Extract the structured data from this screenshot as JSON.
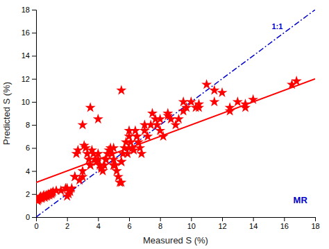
{
  "chart_data": {
    "type": "scatter",
    "xlabel": "Measured S (%)",
    "ylabel": "Predicted S (%)",
    "xlim": [
      0,
      18
    ],
    "ylim": [
      0,
      18
    ],
    "xticks": [
      0,
      2,
      4,
      6,
      8,
      10,
      12,
      14,
      16,
      18
    ],
    "yticks": [
      0,
      2,
      4,
      6,
      8,
      10,
      12,
      14,
      16,
      18
    ],
    "series": [
      {
        "type": "scatter",
        "marker": "star",
        "color": "#ff0000",
        "x": [
          0.1,
          0.15,
          0.2,
          0.25,
          0.3,
          0.35,
          0.4,
          0.45,
          0.5,
          0.55,
          0.6,
          0.65,
          0.7,
          0.75,
          0.8,
          0.85,
          0.9,
          0.95,
          1.0,
          1.05,
          1.1,
          1.3,
          1.6,
          1.9,
          2.0,
          2.1,
          2.2,
          2.3,
          2.5,
          2.6,
          2.7,
          2.8,
          3.0,
          3.1,
          3.2,
          3.3,
          3.4,
          3.5,
          3.6,
          3.7,
          3.8,
          3.9,
          4.0,
          4.1,
          4.2,
          4.3,
          4.4,
          4.5,
          4.6,
          4.7,
          4.8,
          4.9,
          5.0,
          5.0,
          5.1,
          5.2,
          5.3,
          5.4,
          5.5,
          5.6,
          5.7,
          5.8,
          5.9,
          6.0,
          6.1,
          6.2,
          6.3,
          6.4,
          6.5,
          6.6,
          6.7,
          6.8,
          7.0,
          7.2,
          7.4,
          7.5,
          7.7,
          7.8,
          8.0,
          8.2,
          8.5,
          8.7,
          9.0,
          9.2,
          9.5,
          9.7,
          10.0,
          10.3,
          10.5,
          11.0,
          11.5,
          12.0,
          12.5,
          13.0,
          13.5,
          14.0,
          16.5,
          16.8,
          2.0,
          2.5,
          3.0,
          3.5,
          4.0,
          4.5,
          5.0,
          5.5,
          5.5,
          6.0,
          3.0,
          3.5,
          4.0,
          4.5,
          5.0,
          5.5,
          6.0,
          6.5,
          7.0,
          8.0,
          8.5,
          9.5,
          10.5,
          11.5,
          12.5,
          13.5
        ],
        "values": [
          1.4,
          1.5,
          1.6,
          1.7,
          1.8,
          1.6,
          1.7,
          1.8,
          1.9,
          1.7,
          1.8,
          1.9,
          1.8,
          1.9,
          2.0,
          1.9,
          2.0,
          2.1,
          2.0,
          2.1,
          2.2,
          2.3,
          2.3,
          2.5,
          1.8,
          2.0,
          2.2,
          2.5,
          3.5,
          5.5,
          5.8,
          3.2,
          3.5,
          6.2,
          6.0,
          5.5,
          5.0,
          4.5,
          5.8,
          5.5,
          5.0,
          4.8,
          5.0,
          4.5,
          4.2,
          4.0,
          4.5,
          5.0,
          5.5,
          5.8,
          6.0,
          5.5,
          6.0,
          5.0,
          4.5,
          4.0,
          3.5,
          3.0,
          3.0,
          5.5,
          6.0,
          6.5,
          5.5,
          6.0,
          6.5,
          6.0,
          5.8,
          7.5,
          7.0,
          6.5,
          6.0,
          5.5,
          7.5,
          7.0,
          8.0,
          9.0,
          8.5,
          8.0,
          7.5,
          7.0,
          9.0,
          8.5,
          8.0,
          8.5,
          10.0,
          9.5,
          10.0,
          9.5,
          9.8,
          11.5,
          10.0,
          10.8,
          9.5,
          10.0,
          9.5,
          10.2,
          11.5,
          11.8,
          2.5,
          3.5,
          4.0,
          4.5,
          5.5,
          5.0,
          4.5,
          4.8,
          11.0,
          7.0,
          8.0,
          9.5,
          8.5,
          5.0,
          4.5,
          4.8,
          7.5,
          7.0,
          8.0,
          8.5,
          8.8,
          9.2,
          9.5,
          11.0,
          9.2,
          9.8
        ]
      },
      {
        "type": "line",
        "line_style": "solid",
        "color": "#ff0000",
        "x": [
          0,
          18
        ],
        "values": [
          3.0,
          12.0
        ]
      },
      {
        "type": "line",
        "line_style": "dashdot",
        "color": "#0000cc",
        "x": [
          0,
          18
        ],
        "values": [
          0,
          18
        ]
      }
    ],
    "annotations": [
      {
        "text": "MR",
        "x": 17.5,
        "y": 1.2,
        "color": "#0000cc"
      },
      {
        "text": "1:1",
        "x": 15.2,
        "y": 16.8,
        "color": "#0000cc"
      }
    ]
  }
}
